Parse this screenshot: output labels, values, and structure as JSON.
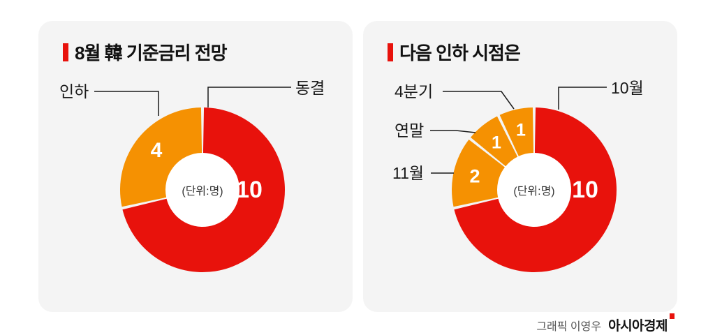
{
  "page": {
    "background": "#ffffff"
  },
  "colors": {
    "red": "#e8120c",
    "orange": "#f59102",
    "card_bg": "#f4f4f4"
  },
  "footer": {
    "credit": "그래픽 이영우",
    "brand": "아시아경제"
  },
  "chart_data": [
    {
      "type": "pie",
      "title": "8월 韓 기준금리 전망",
      "center_label": "(단위:명)",
      "unit": "명",
      "start_angle_deg": 0,
      "direction": "clockwise",
      "legend_position": "callout-labels",
      "slices": [
        {
          "label": "동결",
          "value": 10,
          "color": "#e8120c"
        },
        {
          "label": "인하",
          "value": 4,
          "color": "#f59102"
        }
      ]
    },
    {
      "type": "pie",
      "title": "다음 인하 시점은",
      "center_label": "(단위:명)",
      "unit": "명",
      "start_angle_deg": 0,
      "direction": "clockwise",
      "legend_position": "callout-labels",
      "slices": [
        {
          "label": "10월",
          "value": 10,
          "color": "#e8120c"
        },
        {
          "label": "11월",
          "value": 2,
          "color": "#f59102"
        },
        {
          "label": "연말",
          "value": 1,
          "color": "#f59102"
        },
        {
          "label": "4분기",
          "value": 1,
          "color": "#f59102"
        }
      ]
    }
  ]
}
